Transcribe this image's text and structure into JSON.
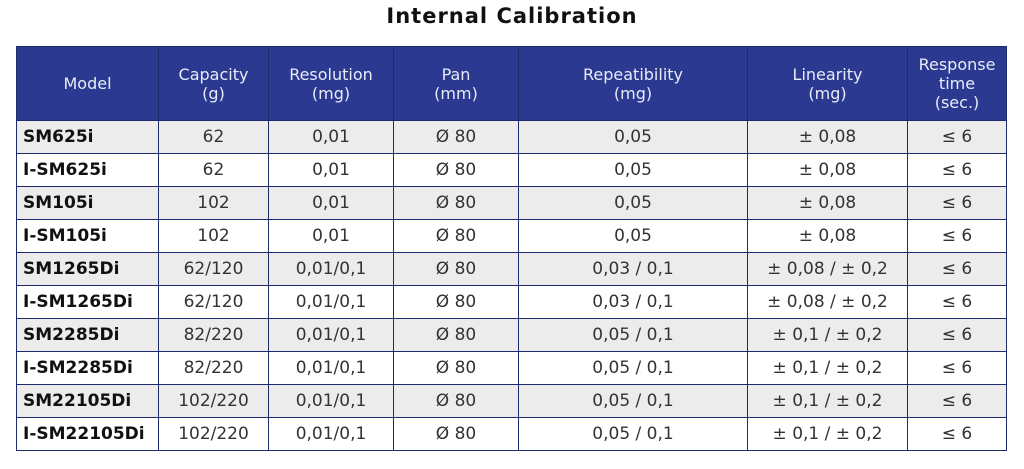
{
  "title": "Internal Calibration",
  "table": {
    "header": [
      "Model",
      "Capacity\n(g)",
      "Resolution\n(mg)",
      "Pan\n(mm)",
      "Repeatibility\n(mg)",
      "Linearity\n(mg)",
      "Response\ntime\n(sec.)"
    ],
    "rows": [
      [
        "SM625i",
        "62",
        "0,01",
        "Ø 80",
        "0,05",
        "± 0,08",
        "≤ 6"
      ],
      [
        "I-SM625i",
        "62",
        "0,01",
        "Ø 80",
        "0,05",
        "± 0,08",
        "≤ 6"
      ],
      [
        "SM105i",
        "102",
        "0,01",
        "Ø 80",
        "0,05",
        "± 0,08",
        "≤ 6"
      ],
      [
        "I-SM105i",
        "102",
        "0,01",
        "Ø 80",
        "0,05",
        "± 0,08",
        "≤ 6"
      ],
      [
        "SM1265Di",
        "62/120",
        "0,01/0,1",
        "Ø 80",
        "0,03 / 0,1",
        "± 0,08 / ± 0,2",
        "≤ 6"
      ],
      [
        "I-SM1265Di",
        "62/120",
        "0,01/0,1",
        "Ø 80",
        "0,03 / 0,1",
        "± 0,08 / ± 0,2",
        "≤ 6"
      ],
      [
        "SM2285Di",
        "82/220",
        "0,01/0,1",
        "Ø 80",
        "0,05 / 0,1",
        "± 0,1 / ± 0,2",
        "≤ 6"
      ],
      [
        "I-SM2285Di",
        "82/220",
        "0,01/0,1",
        "Ø 80",
        "0,05 / 0,1",
        "± 0,1 / ± 0,2",
        "≤ 6"
      ],
      [
        "SM22105Di",
        "102/220",
        "0,01/0,1",
        "Ø 80",
        "0,05 / 0,1",
        "± 0,1 / ± 0,2",
        "≤ 6"
      ],
      [
        "I-SM22105Di",
        "102/220",
        "0,01/0,1",
        "Ø 80",
        "0,05 / 0,1",
        "± 0,1 / ± 0,2",
        "≤ 6"
      ]
    ]
  }
}
